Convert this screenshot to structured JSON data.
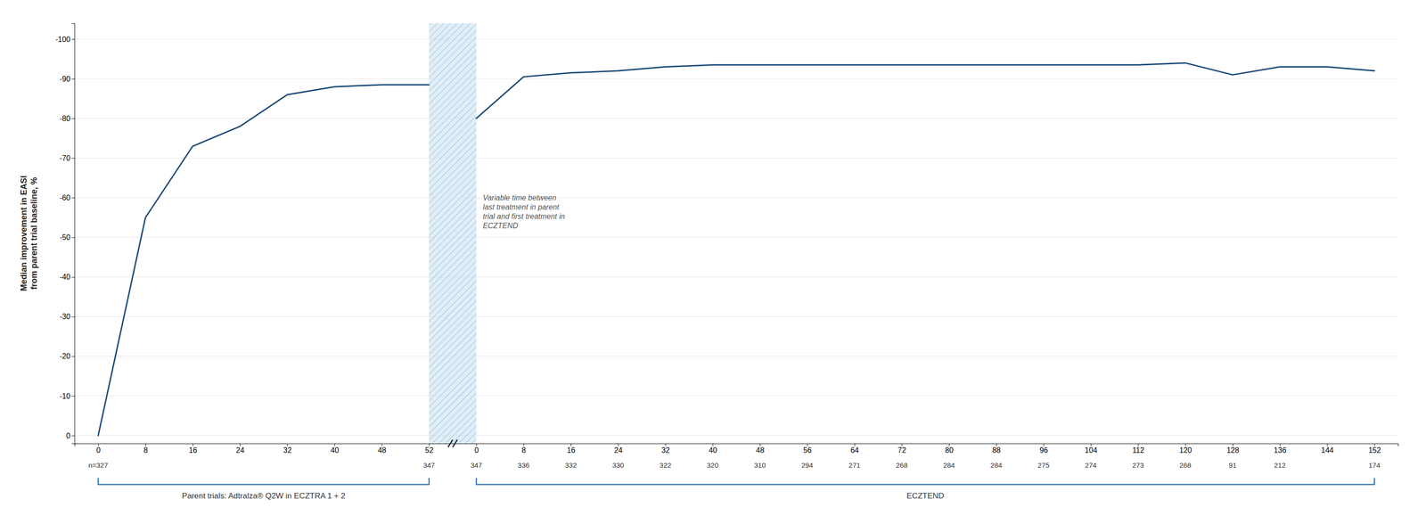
{
  "chart_data": {
    "type": "line",
    "y_label": "Median improvement in EASI\nfrom parent trial baseline, %",
    "categories": [
      "0",
      "8",
      "16",
      "24",
      "32",
      "40",
      "48",
      "52",
      "0",
      "8",
      "16",
      "24",
      "32",
      "40",
      "48",
      "56",
      "64",
      "72",
      "80",
      "88",
      "96",
      "104",
      "112",
      "120",
      "128",
      "136",
      "144",
      "152"
    ],
    "series": [
      {
        "name": "Parent trials: Adtralza® Q2W in ECZTRA 1 + 2",
        "color": "#1a4a7a",
        "values": [
          0,
          -55,
          -73,
          -78,
          -86,
          -88,
          -88.5,
          -88.5,
          null,
          null,
          null,
          null,
          null,
          null,
          null,
          null,
          null,
          null,
          null,
          null,
          null,
          null,
          null,
          null,
          null,
          null,
          null,
          null
        ]
      },
      {
        "name": "ECZTEND",
        "color": "#1a4a7a",
        "values": [
          null,
          null,
          null,
          null,
          null,
          null,
          null,
          null,
          -80,
          -90.5,
          -91.5,
          -92,
          -93,
          -93.5,
          -93.5,
          -93.5,
          -93.5,
          -93.5,
          -93.5,
          -93.5,
          -93.5,
          -93.5,
          -93.5,
          -94,
          -91,
          -93,
          -93,
          -92
        ]
      }
    ],
    "n": [
      327,
      null,
      null,
      null,
      null,
      null,
      null,
      347,
      347,
      336,
      332,
      330,
      322,
      320,
      310,
      294,
      271,
      268,
      284,
      284,
      275,
      274,
      273,
      268,
      91,
      212,
      null,
      174
    ],
    "n_labels": [
      "n=327",
      null,
      null,
      null,
      null,
      null,
      null,
      "347",
      "347",
      "336",
      "332",
      "330",
      "322",
      "320",
      "310",
      "294",
      "271",
      "268",
      "284",
      "284",
      "275",
      "274",
      "273",
      "268",
      "91",
      "212",
      null,
      "174"
    ],
    "annotations": [
      {
        "text": "Variable time between\nlast treatment in parent\ntrial and first treatment in\nECZTEND"
      }
    ],
    "ylim": [
      2,
      -104
    ],
    "yticks": [
      0,
      -10,
      -20,
      -30,
      -40,
      -50,
      -60,
      -70,
      -80,
      -90,
      -100
    ],
    "grid": true
  }
}
